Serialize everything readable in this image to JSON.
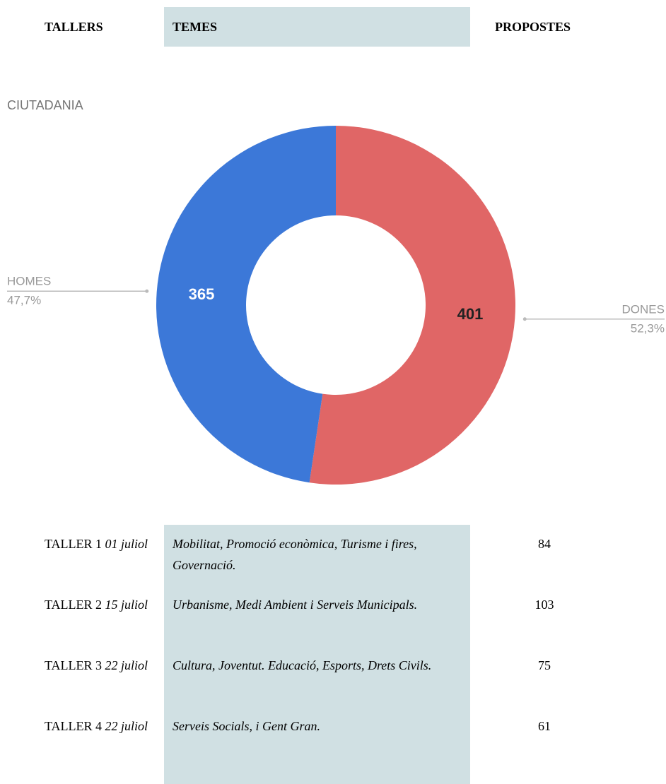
{
  "header": {
    "columns": [
      "TALLERS",
      "TEMES",
      "PROPOSTES"
    ]
  },
  "chart_data": {
    "type": "donut",
    "title": "CIUTADANIA",
    "categories": [
      "DONES",
      "HOMES"
    ],
    "values": [
      401,
      365
    ],
    "percentages": [
      52.3,
      47.7
    ],
    "percentage_labels": [
      "52,3%",
      "47,7%"
    ],
    "colors": [
      "#e06666",
      "#3c78d8"
    ]
  },
  "table": {
    "rows": [
      {
        "taller": "TALLER 1",
        "date": "01 juliol",
        "temes": "Mobilitat, Promoció econòmica, Turisme i fires, Governació.",
        "propostes": 84
      },
      {
        "taller": "TALLER 2",
        "date": "15 juliol",
        "temes": "Urbanisme, Medi Ambient i Serveis Municipals.",
        "propostes": 103
      },
      {
        "taller": "TALLER 3",
        "date": "22 juliol",
        "temes": "Cultura, Joventut. Educació, Esports, Drets Civils.",
        "propostes": 75
      },
      {
        "taller": "TALLER 4",
        "date": "22 juliol",
        "temes": "Serveis Socials, i Gent Gran.",
        "propostes": 61
      }
    ]
  }
}
